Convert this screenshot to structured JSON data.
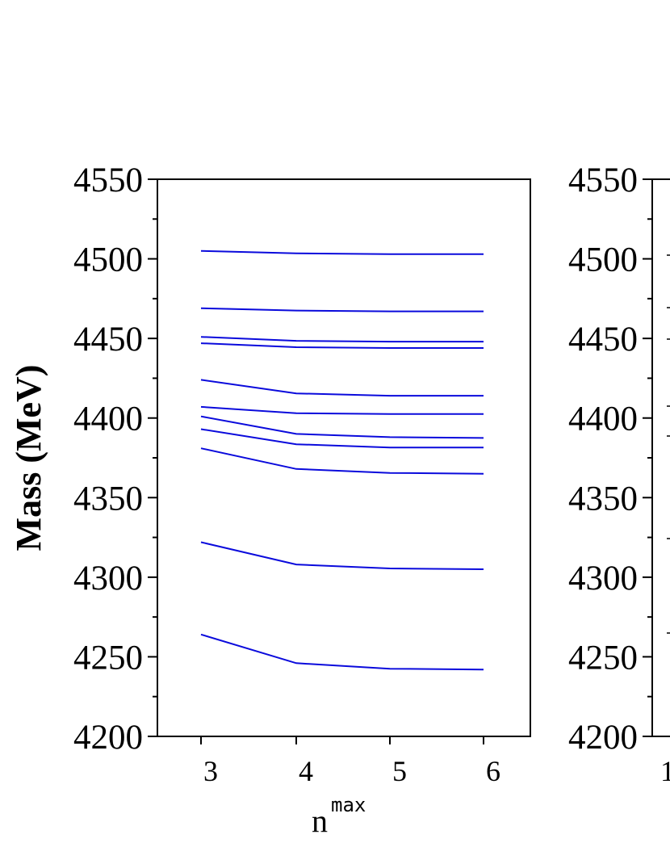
{
  "chart_data": [
    {
      "type": "line",
      "title": "",
      "xlabel": "n",
      "xlabel_superscript": "max",
      "ylabel": "Mass (MeV)",
      "ylim": [
        4200,
        4550
      ],
      "y_ticks": [
        "4200",
        "4250",
        "4300",
        "4350",
        "4400",
        "4450",
        "4500",
        "4550"
      ],
      "x": [
        3,
        4,
        5,
        6
      ],
      "x_ticks": [
        "3",
        "4",
        "5",
        "6"
      ],
      "line_color": "#0a0adc",
      "grid": false,
      "series": [
        {
          "values": [
            4264,
            4246,
            4242.5,
            4242
          ]
        },
        {
          "values": [
            4322,
            4308,
            4305.5,
            4305
          ]
        },
        {
          "values": [
            4381,
            4368,
            4365.5,
            4365
          ]
        },
        {
          "values": [
            4393,
            4383.5,
            4381.5,
            4381.5
          ]
        },
        {
          "values": [
            4401,
            4390,
            4388,
            4387.5
          ]
        },
        {
          "values": [
            4407,
            4403,
            4402.5,
            4402.5
          ]
        },
        {
          "values": [
            4424,
            4415.5,
            4414,
            4414
          ]
        },
        {
          "values": [
            4447,
            4444.5,
            4444,
            4444
          ]
        },
        {
          "values": [
            4451,
            4448.5,
            4448,
            4448
          ]
        },
        {
          "values": [
            4469,
            4467.5,
            4467,
            4467
          ]
        },
        {
          "values": [
            4505,
            4503.5,
            4503,
            4503
          ]
        }
      ]
    },
    {
      "type": "line",
      "title": "",
      "ylim": [
        4200,
        4550
      ],
      "y_ticks": [
        "4200",
        "4250",
        "4300",
        "4350",
        "4400",
        "4450",
        "4500",
        "4550"
      ],
      "x_ticks_visible": [
        "1"
      ],
      "note": "right panel is cut off at the image edge"
    }
  ]
}
